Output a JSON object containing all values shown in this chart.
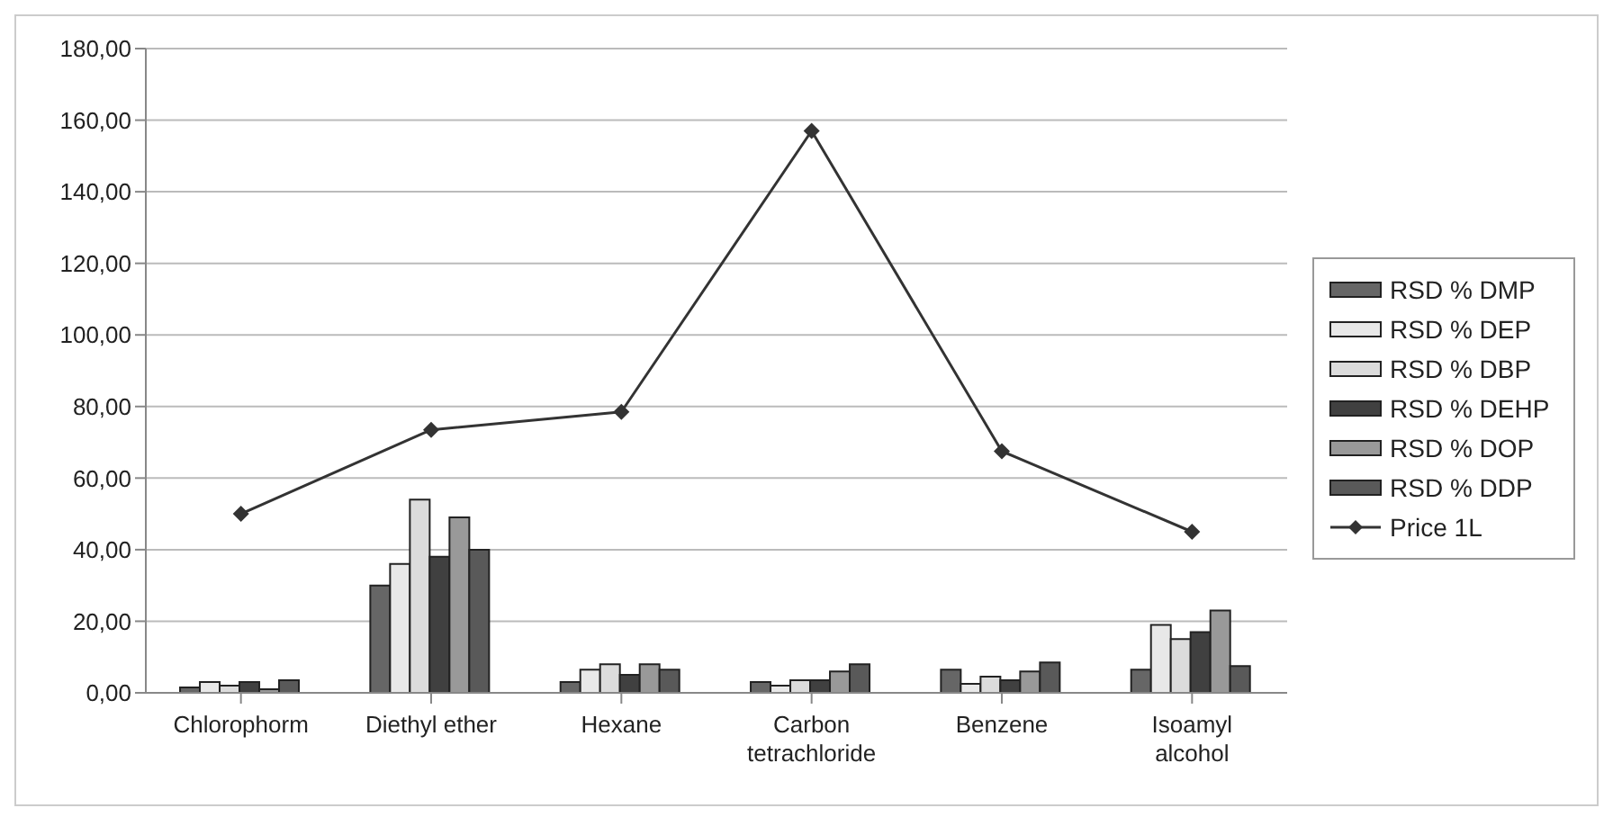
{
  "chart_data": {
    "type": "bar",
    "categories": [
      "Chlorophorm",
      "Diethyl ether",
      "Hexane",
      "Carbon tetrachloride",
      "Benzene",
      "Isoamyl alcohol"
    ],
    "series": [
      {
        "name": "RSD % DMP",
        "color": "#666666",
        "values": [
          1.5,
          30,
          3,
          3,
          6.5,
          6.5
        ]
      },
      {
        "name": "RSD % DEP",
        "color": "#e8e8e8",
        "values": [
          3,
          36,
          6.5,
          2,
          2.5,
          19
        ]
      },
      {
        "name": "RSD % DBP",
        "color": "#dcdcdc",
        "values": [
          2,
          54,
          8,
          3.5,
          4.5,
          15
        ]
      },
      {
        "name": "RSD % DEHP",
        "color": "#404040",
        "values": [
          3,
          38,
          5,
          3.5,
          3.5,
          17
        ]
      },
      {
        "name": "RSD % DOP",
        "color": "#999999",
        "values": [
          1,
          49,
          8,
          6,
          6,
          23
        ]
      },
      {
        "name": "RSD % DDP",
        "color": "#595959",
        "values": [
          3.5,
          40,
          6.5,
          8,
          8.5,
          7.5
        ]
      },
      {
        "name": "Price 1L",
        "type": "line",
        "color": "#333333",
        "values": [
          50,
          73.5,
          78.5,
          157,
          67.5,
          45
        ]
      }
    ],
    "ylim": [
      0,
      180
    ],
    "yticks": [
      {
        "value": 0,
        "label": "0,00"
      },
      {
        "value": 20,
        "label": "20,00"
      },
      {
        "value": 40,
        "label": "40,00"
      },
      {
        "value": 60,
        "label": "60,00"
      },
      {
        "value": 80,
        "label": "80,00"
      },
      {
        "value": 100,
        "label": "100,00"
      },
      {
        "value": 120,
        "label": "120,00"
      },
      {
        "value": 140,
        "label": "140,00"
      },
      {
        "value": 160,
        "label": "160,00"
      },
      {
        "value": 180,
        "label": "180,00"
      }
    ],
    "grid": "y",
    "legend": "right",
    "marker": "diamond"
  }
}
